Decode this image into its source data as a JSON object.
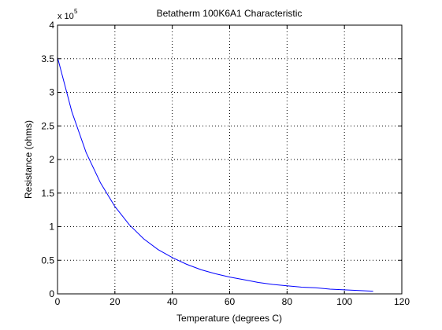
{
  "chart_data": {
    "type": "line",
    "title": "Betatherm 100K6A1 Characteristic",
    "xlabel": "Temperature (degrees C)",
    "ylabel": "Resistance (ohms)",
    "exponent_label": {
      "base": "x 10",
      "power": "5"
    },
    "xlim": [
      0,
      120
    ],
    "ylim": [
      0,
      4
    ],
    "y_multiplier": 100000,
    "grid": true,
    "grid_style": "dotted",
    "x_ticks": [
      {
        "value": 0,
        "label": "0"
      },
      {
        "value": 20,
        "label": "20"
      },
      {
        "value": 40,
        "label": "40"
      },
      {
        "value": 60,
        "label": "60"
      },
      {
        "value": 80,
        "label": "80"
      },
      {
        "value": 100,
        "label": "100"
      },
      {
        "value": 120,
        "label": "120"
      }
    ],
    "y_ticks": [
      {
        "value": 0,
        "label": "0"
      },
      {
        "value": 0.5,
        "label": "0.5"
      },
      {
        "value": 1,
        "label": "1"
      },
      {
        "value": 1.5,
        "label": "1.5"
      },
      {
        "value": 2,
        "label": "2"
      },
      {
        "value": 2.5,
        "label": "2.5"
      },
      {
        "value": 3,
        "label": "3"
      },
      {
        "value": 3.5,
        "label": "3.5"
      },
      {
        "value": 4,
        "label": "4"
      }
    ],
    "series": [
      {
        "color": "#0000ff",
        "x": [
          0,
          5,
          10,
          15,
          20,
          25,
          30,
          35,
          40,
          45,
          50,
          55,
          60,
          65,
          70,
          75,
          80,
          85,
          90,
          95,
          100,
          105,
          110
        ],
        "y": [
          3.52,
          2.71,
          2.1,
          1.65,
          1.3,
          1.03,
          0.82,
          0.66,
          0.54,
          0.44,
          0.36,
          0.3,
          0.25,
          0.21,
          0.17,
          0.14,
          0.12,
          0.1,
          0.09,
          0.07,
          0.06,
          0.05,
          0.04
        ]
      }
    ]
  }
}
